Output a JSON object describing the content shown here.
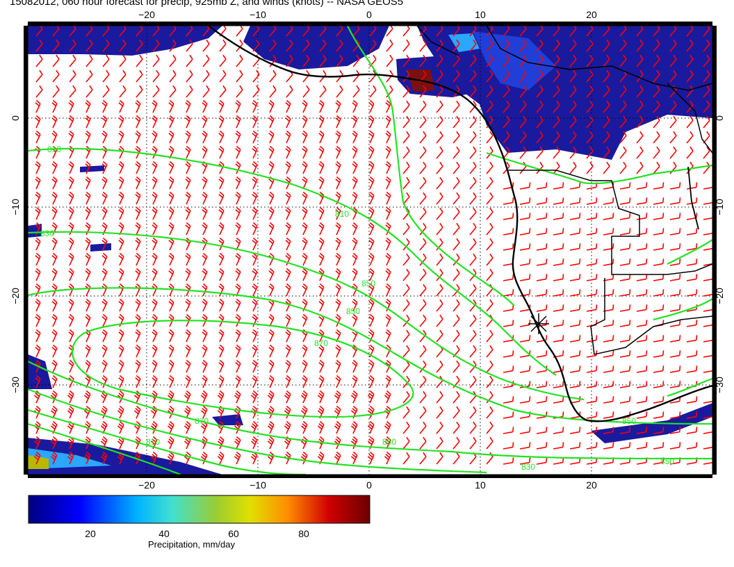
{
  "title": "15082012, 060 hour forecast for precip, 925mb Z, and winds (knots) -- NASA GEOS5",
  "map": {
    "lon_ticks": [
      "−20",
      "−10",
      "0",
      "10",
      "20"
    ],
    "lat_ticks": [
      "0",
      "−10",
      "−20",
      "−30"
    ],
    "contour_labels": [
      "810",
      "810",
      "830",
      "850",
      "870",
      "870",
      "850",
      "850",
      "830",
      "810",
      "850",
      "850"
    ],
    "marker": "asterisk",
    "colors": {
      "wind_barbs": "#ff0000",
      "contours": "#22e322",
      "coastline": "#000000",
      "grid": "#000000"
    }
  },
  "colorbar": {
    "ticks": [
      "20",
      "40",
      "60",
      "80"
    ],
    "label": "Precipitation, mm/day",
    "colors": [
      "#00007f",
      "#0000ff",
      "#00bfff",
      "#40e0d0",
      "#9acd32",
      "#e0e000",
      "#ff8c00",
      "#d00000",
      "#6b0000"
    ]
  }
}
